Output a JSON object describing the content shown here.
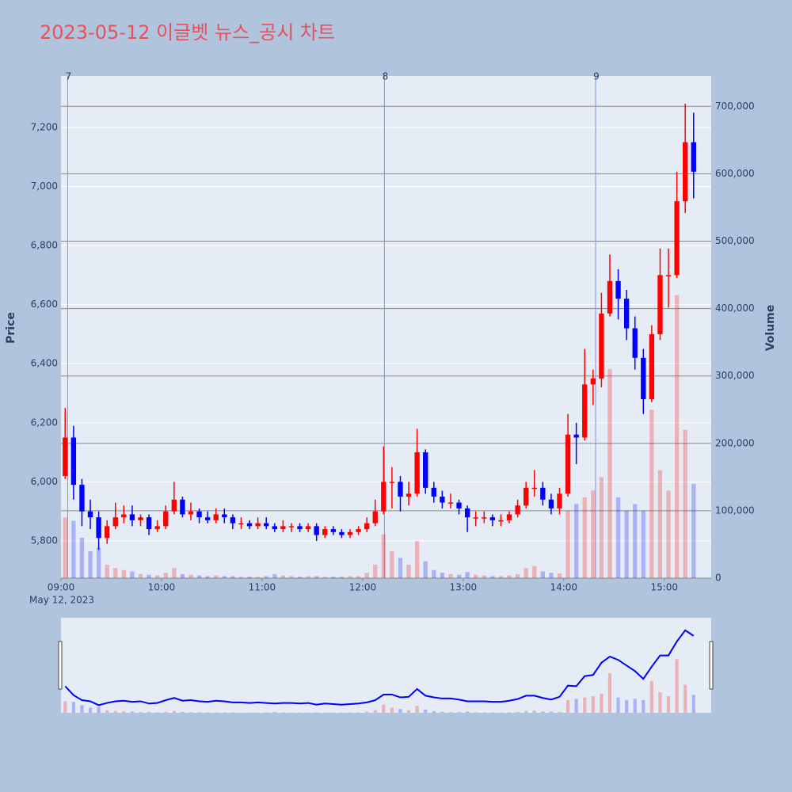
{
  "chart_data": {
    "type": "candlestick",
    "title": "2023-05-12 이글벳 뉴스_공시 차트",
    "y_label": "Price",
    "y2_label": "Volume",
    "x_date_label": "May 12, 2023",
    "increasing_color": "#ff0000",
    "decreasing_color": "#0000ff",
    "x": [
      "09:00",
      "09:05",
      "09:10",
      "09:15",
      "09:20",
      "09:25",
      "09:30",
      "09:35",
      "09:40",
      "09:45",
      "09:50",
      "09:55",
      "10:00",
      "10:05",
      "10:10",
      "10:15",
      "10:20",
      "10:25",
      "10:30",
      "10:35",
      "10:40",
      "10:45",
      "10:50",
      "10:55",
      "11:00",
      "11:05",
      "11:10",
      "11:15",
      "11:20",
      "11:25",
      "11:30",
      "11:35",
      "11:40",
      "11:45",
      "11:50",
      "11:55",
      "12:00",
      "12:05",
      "12:10",
      "12:15",
      "12:20",
      "12:25",
      "12:30",
      "12:35",
      "12:40",
      "12:45",
      "12:50",
      "12:55",
      "13:00",
      "13:05",
      "13:10",
      "13:15",
      "13:20",
      "13:25",
      "13:30",
      "13:35",
      "13:40",
      "13:45",
      "13:50",
      "13:55",
      "14:00",
      "14:05",
      "14:10",
      "14:15",
      "14:20",
      "14:25",
      "14:30",
      "14:35",
      "14:40",
      "14:45",
      "14:50",
      "14:55",
      "15:00",
      "15:05",
      "15:10",
      "15:15"
    ],
    "open": [
      6020,
      6150,
      5990,
      5900,
      5880,
      5810,
      5850,
      5880,
      5890,
      5870,
      5880,
      5840,
      5850,
      5900,
      5940,
      5890,
      5900,
      5880,
      5870,
      5890,
      5880,
      5860,
      5860,
      5850,
      5860,
      5850,
      5840,
      5850,
      5850,
      5840,
      5850,
      5820,
      5840,
      5830,
      5820,
      5830,
      5840,
      5860,
      5900,
      6000,
      6000,
      5950,
      5960,
      6100,
      5980,
      5950,
      5930,
      5930,
      5910,
      5880,
      5880,
      5880,
      5870,
      5870,
      5890,
      5920,
      5980,
      5980,
      5940,
      5910,
      5960,
      6160,
      6150,
      6330,
      6350,
      6570,
      6680,
      6620,
      6520,
      6420,
      6280,
      6500,
      6700,
      6700,
      6950,
      7150
    ],
    "high": [
      6250,
      6190,
      6010,
      5940,
      5900,
      5870,
      5930,
      5920,
      5920,
      5890,
      5890,
      5870,
      5920,
      6000,
      5950,
      5930,
      5910,
      5900,
      5910,
      5910,
      5890,
      5880,
      5870,
      5880,
      5880,
      5860,
      5870,
      5860,
      5860,
      5860,
      5860,
      5850,
      5850,
      5840,
      5840,
      5850,
      5880,
      5940,
      6120,
      6050,
      6020,
      6000,
      6180,
      6110,
      6000,
      5970,
      5960,
      5940,
      5920,
      5900,
      5900,
      5890,
      5890,
      5900,
      5940,
      6000,
      6040,
      6000,
      5960,
      5980,
      6230,
      6200,
      6450,
      6380,
      6640,
      6770,
      6720,
      6650,
      6560,
      6450,
      6530,
      6790,
      6790,
      7050,
      7280,
      7250
    ],
    "low": [
      6010,
      5940,
      5850,
      5840,
      5770,
      5790,
      5840,
      5860,
      5850,
      5850,
      5820,
      5830,
      5840,
      5890,
      5880,
      5870,
      5860,
      5860,
      5860,
      5860,
      5840,
      5840,
      5840,
      5840,
      5840,
      5830,
      5830,
      5830,
      5830,
      5830,
      5800,
      5810,
      5820,
      5810,
      5810,
      5820,
      5830,
      5850,
      5890,
      5910,
      5900,
      5920,
      5950,
      5960,
      5930,
      5910,
      5910,
      5890,
      5830,
      5850,
      5860,
      5850,
      5850,
      5860,
      5880,
      5910,
      5950,
      5920,
      5890,
      5890,
      5950,
      6060,
      6140,
      6260,
      6320,
      6560,
      6550,
      6480,
      6380,
      6230,
      6270,
      6480,
      6590,
      6690,
      6910,
      6960
    ],
    "close": [
      6150,
      5990,
      5900,
      5880,
      5810,
      5850,
      5880,
      5890,
      5870,
      5880,
      5840,
      5850,
      5900,
      5940,
      5890,
      5900,
      5880,
      5870,
      5890,
      5880,
      5860,
      5860,
      5850,
      5860,
      5850,
      5840,
      5850,
      5850,
      5840,
      5850,
      5820,
      5840,
      5830,
      5820,
      5830,
      5840,
      5860,
      5900,
      6000,
      6000,
      5950,
      5960,
      6100,
      5980,
      5950,
      5930,
      5930,
      5910,
      5880,
      5880,
      5880,
      5870,
      5870,
      5890,
      5920,
      5980,
      5980,
      5940,
      5910,
      5960,
      6160,
      6150,
      6330,
      6350,
      6570,
      6680,
      6620,
      6520,
      6420,
      6280,
      6500,
      6700,
      6700,
      6950,
      7150,
      7050
    ],
    "volume": [
      90000,
      85000,
      60000,
      40000,
      45000,
      20000,
      15000,
      12000,
      10000,
      6000,
      5000,
      4000,
      8000,
      15000,
      6000,
      5000,
      4000,
      3000,
      4000,
      3000,
      3000,
      2000,
      2000,
      2000,
      3000,
      6000,
      4000,
      3000,
      2000,
      3000,
      3000,
      2000,
      2000,
      2000,
      3000,
      3000,
      8000,
      20000,
      65000,
      40000,
      30000,
      20000,
      55000,
      25000,
      12000,
      8000,
      6000,
      5000,
      9000,
      5000,
      4000,
      3000,
      3000,
      4000,
      6000,
      15000,
      18000,
      10000,
      8000,
      7000,
      100000,
      110000,
      120000,
      130000,
      150000,
      310000,
      120000,
      100000,
      110000,
      100000,
      250000,
      160000,
      130000,
      420000,
      220000,
      140000
    ],
    "xlim": [
      "09:00",
      "15:28"
    ],
    "xticks": [
      "09:00",
      "10:00",
      "11:00",
      "12:00",
      "13:00",
      "14:00",
      "15:00"
    ],
    "ylim": [
      5674,
      7374
    ],
    "yticks": [
      {
        "value": 5800,
        "label": "5,800"
      },
      {
        "value": 6000,
        "label": "6,000"
      },
      {
        "value": 6200,
        "label": "6,200"
      },
      {
        "value": 6400,
        "label": "6,400"
      },
      {
        "value": 6600,
        "label": "6,600"
      },
      {
        "value": 6800,
        "label": "6,800"
      },
      {
        "value": 7000,
        "label": "7,000"
      },
      {
        "value": 7200,
        "label": "7,200"
      }
    ],
    "y2lim": [
      0,
      745000
    ],
    "y2ticks": [
      0,
      {
        "value": 100000,
        "label": "100,000"
      },
      {
        "value": 200000,
        "label": "200,000"
      },
      {
        "value": 300000,
        "label": "300,000"
      },
      {
        "value": 400000,
        "label": "400,000"
      },
      {
        "value": 500000,
        "label": "500,000"
      },
      {
        "value": 600000,
        "label": "600,000"
      },
      {
        "value": 700000,
        "label": "700,000"
      }
    ],
    "annotations": [
      {
        "x": "09:04",
        "text": "7"
      },
      {
        "x": "12:13",
        "text": "8"
      },
      {
        "x": "14:19",
        "text": "9"
      }
    ],
    "grid": true
  }
}
